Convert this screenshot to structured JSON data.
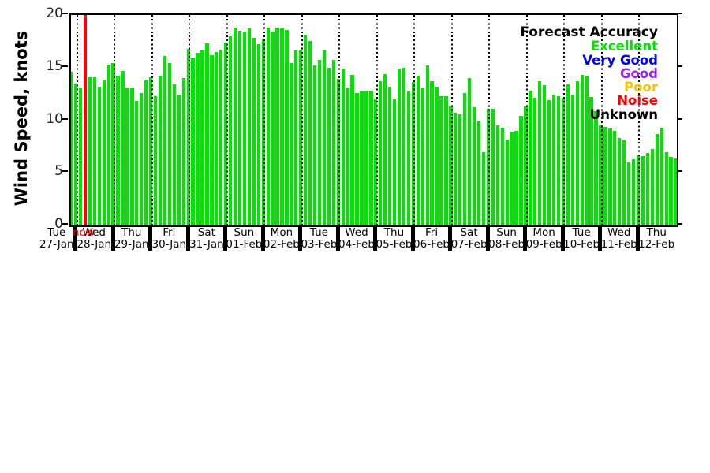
{
  "y_axis": {
    "label": "Wind Speed, knots",
    "ticks": [
      0,
      5,
      10,
      15,
      20
    ],
    "min": 0,
    "max": 20
  },
  "now_label": "now",
  "legend": {
    "title": "Forecast Accuracy",
    "title_color": "#000000",
    "entries": [
      {
        "label": "Excellent",
        "color": "#00e400"
      },
      {
        "label": "Very Good",
        "color": "#0000ff"
      },
      {
        "label": "Good",
        "color": "#a020f0"
      },
      {
        "label": "Poor",
        "color": "#ffc400"
      },
      {
        "label": "Noise",
        "color": "#ff0000"
      },
      {
        "label": "Unknown",
        "color": "#000000"
      }
    ]
  },
  "colors": {
    "bar_excellent": "#00e400",
    "now_marker": "#ff0000",
    "axis": "#000000"
  },
  "chart_data": {
    "type": "bar",
    "title": "",
    "xlabel": "",
    "ylabel": "Wind Speed, knots",
    "ylim": [
      0,
      20
    ],
    "yticks": [
      0,
      5,
      10,
      15,
      20
    ],
    "grid": "vertical-dotted-at-day-boundaries",
    "legend_position": "top-right-inside",
    "bars_per_day": 8,
    "accuracy_of_all_bars": "Excellent",
    "now_marker": {
      "day_index": 1,
      "slot": 1,
      "value": 20,
      "color": "#ff0000",
      "label": "now"
    },
    "days": [
      {
        "day": "Tue",
        "date": "27-Jan",
        "values": [
          null,
          null,
          null,
          null,
          null,
          null,
          14.6,
          13.5
        ]
      },
      {
        "day": "Wed",
        "date": "28-Jan",
        "values": [
          13.1,
          null,
          14.1,
          14.1,
          13.2,
          13.8,
          15.3,
          15.4
        ]
      },
      {
        "day": "Thu",
        "date": "29-Jan",
        "values": [
          14.2,
          14.7,
          13.1,
          13.0,
          11.8,
          12.6,
          13.8,
          14.1
        ]
      },
      {
        "day": "Fri",
        "date": "30-Jan",
        "values": [
          12.3,
          14.2,
          16.1,
          15.4,
          13.4,
          12.4,
          14.0,
          16.8
        ]
      },
      {
        "day": "Sat",
        "date": "31-Jan",
        "values": [
          15.9,
          16.4,
          16.6,
          17.3,
          16.2,
          16.5,
          16.7,
          17.4
        ]
      },
      {
        "day": "Sun",
        "date": "01-Feb",
        "values": [
          18.0,
          18.8,
          18.5,
          18.4,
          18.7,
          17.8,
          17.2,
          17.7
        ]
      },
      {
        "day": "Mon",
        "date": "02-Feb",
        "values": [
          18.8,
          18.4,
          18.8,
          18.7,
          18.6,
          15.4,
          16.6,
          16.6
        ]
      },
      {
        "day": "Tue",
        "date": "03-Feb",
        "values": [
          18.1,
          17.5,
          15.2,
          15.7,
          16.6,
          15.0,
          15.7,
          13.9
        ]
      },
      {
        "day": "Wed",
        "date": "04-Feb",
        "values": [
          14.9,
          13.1,
          14.3,
          12.6,
          12.7,
          12.7,
          12.8,
          12.0
        ]
      },
      {
        "day": "Thu",
        "date": "05-Feb",
        "values": [
          13.7,
          14.4,
          13.2,
          12.0,
          14.9,
          15.0,
          12.7,
          13.6
        ]
      },
      {
        "day": "Fri",
        "date": "06-Feb",
        "values": [
          14.2,
          13.0,
          15.2,
          13.7,
          13.2,
          12.3,
          12.3,
          11.4
        ]
      },
      {
        "day": "Sat",
        "date": "07-Feb",
        "values": [
          10.7,
          10.6,
          12.6,
          14.0,
          11.2,
          9.9,
          7.0,
          11.1
        ]
      },
      {
        "day": "Sun",
        "date": "08-Feb",
        "values": [
          11.1,
          9.5,
          9.3,
          8.2,
          8.9,
          9.0,
          10.4,
          11.3
        ]
      },
      {
        "day": "Mon",
        "date": "09-Feb",
        "values": [
          12.8,
          12.1,
          13.7,
          13.3,
          11.9,
          12.4,
          12.3,
          12.1
        ]
      },
      {
        "day": "Tue",
        "date": "10-Feb",
        "values": [
          13.4,
          12.4,
          13.7,
          14.3,
          14.2,
          12.2,
          10.9,
          9.5
        ]
      },
      {
        "day": "Wed",
        "date": "11-Feb",
        "values": [
          9.4,
          9.2,
          9.0,
          8.3,
          8.1,
          6.0,
          6.3,
          6.7
        ]
      },
      {
        "day": "Thu",
        "date": "12-Feb",
        "values": [
          6.6,
          6.9,
          7.3,
          8.7,
          9.3,
          7.0,
          6.5,
          6.4
        ]
      }
    ]
  }
}
